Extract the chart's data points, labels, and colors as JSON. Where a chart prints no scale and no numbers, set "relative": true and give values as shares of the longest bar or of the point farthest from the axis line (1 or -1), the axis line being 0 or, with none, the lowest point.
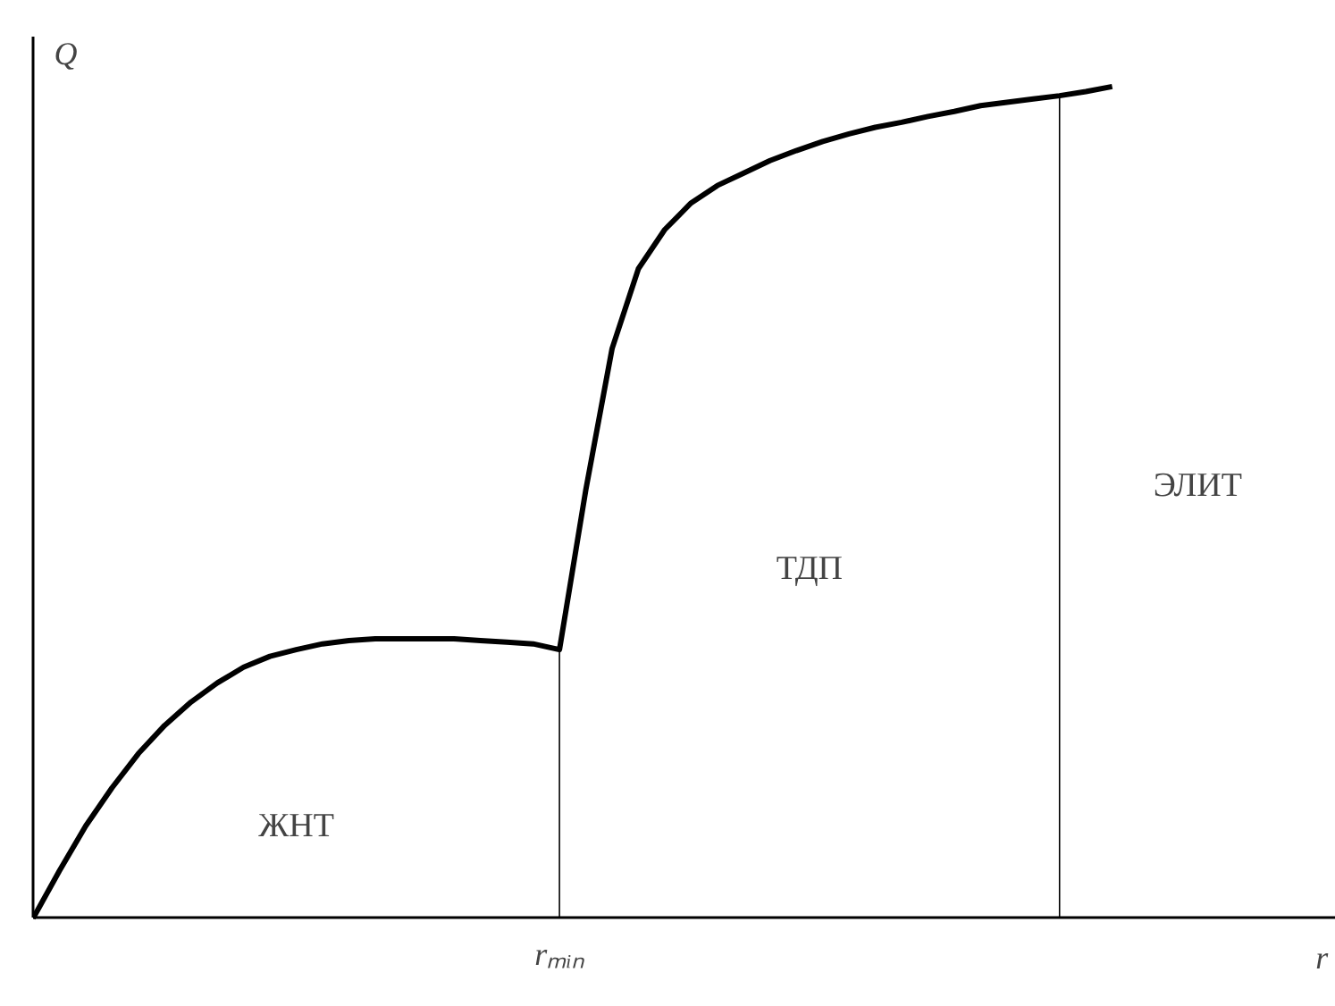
{
  "chart_data": {
    "type": "line",
    "relative": true,
    "ylabel": "Q",
    "categories": [
      null,
      null,
      null,
      null,
      null,
      null,
      null,
      null,
      null,
      null,
      null,
      null,
      null,
      null,
      null,
      null,
      null,
      null,
      null,
      null,
      null,
      null,
      null,
      null,
      null,
      null,
      null,
      null,
      null,
      null,
      null,
      null,
      null,
      null,
      null,
      null,
      null,
      null,
      null,
      null,
      null,
      null
    ],
    "series": [
      {
        "color": "#000000",
        "values": [
          0,
          0.057,
          0.111,
          0.157,
          0.198,
          0.232,
          0.26,
          0.283,
          0.302,
          0.315,
          0.323,
          0.33,
          0.334,
          0.336,
          0.336,
          0.336,
          0.336,
          0.334,
          0.332,
          0.33,
          0.323,
          0.515,
          0.685,
          0.781,
          0.828,
          0.86,
          0.881,
          0.896,
          0.911,
          0.923,
          0.934,
          0.943,
          0.951,
          0.957,
          0.964,
          0.97,
          0.977,
          0.981,
          0.985,
          0.989,
          0.994,
          1
        ]
      }
    ],
    "annotations": [
      "ЖНТ",
      "ТДП",
      "ЭЛИТ",
      "rₘᵢₙ",
      "r"
    ],
    "marker": "none",
    "line_style": "solid"
  }
}
